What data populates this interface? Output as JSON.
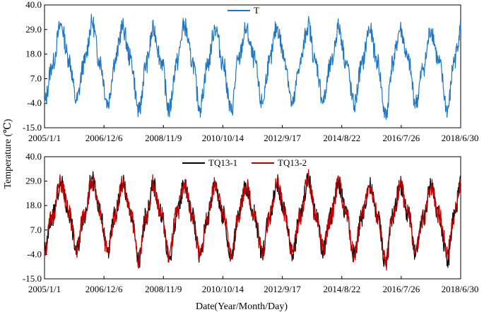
{
  "colors": {
    "T": "#1f77c4",
    "TQ13-1": "#000000",
    "TQ13-2": "#c00000"
  },
  "shared": {
    "ylabel": "Temperature (℃)",
    "xlabel": "Date(Year/Month/Day)"
  },
  "chart_data": [
    {
      "type": "line",
      "xaxis": "date",
      "xlim": [
        "2005-01-01",
        "2018-06-30"
      ],
      "ylim": [
        -15.0,
        40.0
      ],
      "yticks": [
        "40.0",
        "29.0",
        "18.0",
        "7.0",
        "-4.0",
        "-15.0"
      ],
      "xtick_labels": [
        "2005/1/1",
        "2006/12/6",
        "2008/11/9",
        "2010/10/14",
        "2012/9/17",
        "2014/8/22",
        "2016/7/26",
        "2018/6/30"
      ],
      "xtick_dates": [
        "2005-01-01",
        "2006-12-06",
        "2008-11-09",
        "2010-10-14",
        "2012-09-17",
        "2014-08-22",
        "2016-07-26",
        "2018-06-30"
      ],
      "legend_position": "top-center",
      "grid": false,
      "series": [
        {
          "name": "T",
          "x": [
            "2005-01-01",
            "2005-04-01",
            "2005-07-15",
            "2005-10-15",
            "2006-01-15",
            "2006-04-15",
            "2006-07-20",
            "2006-10-15",
            "2007-01-20",
            "2007-04-15",
            "2007-07-15",
            "2007-10-15",
            "2008-01-25",
            "2008-04-15",
            "2008-07-15",
            "2008-10-15",
            "2009-01-15",
            "2009-04-15",
            "2009-07-15",
            "2009-10-15",
            "2010-01-15",
            "2010-04-15",
            "2010-07-15",
            "2010-10-15",
            "2011-01-20",
            "2011-04-15",
            "2011-07-15",
            "2011-10-15",
            "2012-01-20",
            "2012-04-15",
            "2012-07-15",
            "2012-10-15",
            "2013-01-15",
            "2013-04-15",
            "2013-07-20",
            "2013-10-15",
            "2014-01-15",
            "2014-04-15",
            "2014-07-15",
            "2014-10-15",
            "2015-01-15",
            "2015-04-15",
            "2015-07-15",
            "2015-10-15",
            "2016-01-25",
            "2016-04-15",
            "2016-07-15",
            "2016-10-15",
            "2017-01-15",
            "2017-04-15",
            "2017-07-15",
            "2017-10-15",
            "2018-01-25",
            "2018-04-15",
            "2018-06-30"
          ],
          "values": [
            -4,
            13,
            31,
            16,
            -3,
            14,
            32,
            15,
            -4,
            15,
            30,
            16,
            -8,
            13,
            29,
            15,
            -7,
            14,
            31,
            15,
            -6,
            13,
            30,
            14,
            -8,
            15,
            29,
            16,
            -4,
            14,
            30,
            16,
            -5,
            14,
            31,
            14,
            -3,
            13,
            30,
            14,
            -5,
            13,
            29,
            15,
            -10,
            14,
            29,
            15,
            -4,
            12,
            29,
            14,
            -7,
            15,
            29
          ]
        }
      ]
    },
    {
      "type": "line",
      "xaxis": "date",
      "xlim": [
        "2005-01-01",
        "2018-06-30"
      ],
      "ylim": [
        -15.0,
        40.0
      ],
      "yticks": [
        "40.0",
        "29.0",
        "18.0",
        "7.0",
        "-4.0",
        "-15.0"
      ],
      "xtick_labels": [
        "2005/1/1",
        "2006/12/6",
        "2008/11/9",
        "2010/10/14",
        "2012/9/17",
        "2014/8/22",
        "2016/7/26",
        "2018/6/30"
      ],
      "xtick_dates": [
        "2005-01-01",
        "2006-12-06",
        "2008-11-09",
        "2010-10-14",
        "2012-09-17",
        "2014-08-22",
        "2016-07-26",
        "2018-06-30"
      ],
      "legend_position": "top-center",
      "grid": false,
      "series": [
        {
          "name": "TQ13-1",
          "x": [
            "2005-01-01",
            "2005-04-01",
            "2005-07-15",
            "2005-10-15",
            "2006-01-15",
            "2006-04-15",
            "2006-07-20",
            "2006-10-15",
            "2007-01-20",
            "2007-04-15",
            "2007-07-15",
            "2007-10-15",
            "2008-01-25",
            "2008-04-15",
            "2008-07-15",
            "2008-10-15",
            "2009-01-15",
            "2009-04-15",
            "2009-07-15",
            "2009-10-15",
            "2010-01-15",
            "2010-04-15",
            "2010-07-15",
            "2010-10-15",
            "2011-01-20",
            "2011-04-15",
            "2011-07-15",
            "2011-10-15",
            "2012-01-20",
            "2012-04-15",
            "2012-07-15",
            "2012-10-15",
            "2013-01-15",
            "2013-04-15",
            "2013-07-20",
            "2013-10-15",
            "2014-01-15",
            "2014-04-15",
            "2014-07-15",
            "2014-10-15",
            "2015-01-15",
            "2015-04-15",
            "2015-07-15",
            "2015-10-15",
            "2016-01-25",
            "2016-04-15",
            "2016-07-15",
            "2016-10-15",
            "2017-01-15",
            "2017-04-15",
            "2017-07-15",
            "2017-10-15",
            "2018-01-25",
            "2018-04-15",
            "2018-06-30"
          ],
          "values": [
            -3,
            13,
            28,
            15,
            -2,
            14,
            30,
            15,
            -3,
            14,
            28,
            15,
            -7,
            13,
            27,
            14,
            -6,
            13,
            28,
            14,
            -5,
            13,
            28,
            14,
            -6,
            14,
            27,
            15,
            -3,
            13,
            28,
            15,
            -4,
            13,
            30,
            14,
            -2,
            13,
            28,
            14,
            -4,
            13,
            27,
            14,
            -8,
            13,
            27,
            14,
            -3,
            12,
            27,
            14,
            -7,
            14,
            27
          ]
        },
        {
          "name": "TQ13-2",
          "x": [
            "2005-01-01",
            "2005-04-01",
            "2005-07-15",
            "2005-10-15",
            "2006-01-15",
            "2006-04-15",
            "2006-07-20",
            "2006-10-15",
            "2007-01-20",
            "2007-04-15",
            "2007-07-15",
            "2007-10-15",
            "2008-01-25",
            "2008-04-15",
            "2008-07-15",
            "2008-10-15",
            "2009-01-15",
            "2009-04-15",
            "2009-07-15",
            "2009-10-15",
            "2010-01-15",
            "2010-04-15",
            "2010-07-15",
            "2010-10-15",
            "2011-01-20",
            "2011-04-15",
            "2011-07-15",
            "2011-10-15",
            "2012-01-20",
            "2012-04-15",
            "2012-07-15",
            "2012-10-15",
            "2013-01-15",
            "2013-04-15",
            "2013-07-20",
            "2013-10-15",
            "2014-01-15",
            "2014-04-15",
            "2014-07-15",
            "2014-10-15",
            "2015-01-15",
            "2015-04-15",
            "2015-07-15",
            "2015-10-15",
            "2016-01-25",
            "2016-04-15",
            "2016-07-15",
            "2016-10-15",
            "2017-01-15",
            "2017-04-15",
            "2017-07-15",
            "2017-10-15",
            "2018-01-25",
            "2018-04-15",
            "2018-06-30"
          ],
          "values": [
            -2,
            13,
            28,
            15,
            -2,
            14,
            29,
            15,
            -3,
            14,
            28,
            15,
            -6,
            13,
            28,
            14,
            -5,
            14,
            28,
            14,
            -5,
            13,
            28,
            14,
            -5,
            14,
            27,
            15,
            -3,
            13,
            28,
            15,
            -3,
            13,
            30,
            14,
            -2,
            13,
            28,
            14,
            -4,
            13,
            27,
            14,
            -8,
            13,
            27,
            14,
            -3,
            12,
            27,
            14,
            -3,
            14,
            28
          ]
        }
      ]
    }
  ]
}
